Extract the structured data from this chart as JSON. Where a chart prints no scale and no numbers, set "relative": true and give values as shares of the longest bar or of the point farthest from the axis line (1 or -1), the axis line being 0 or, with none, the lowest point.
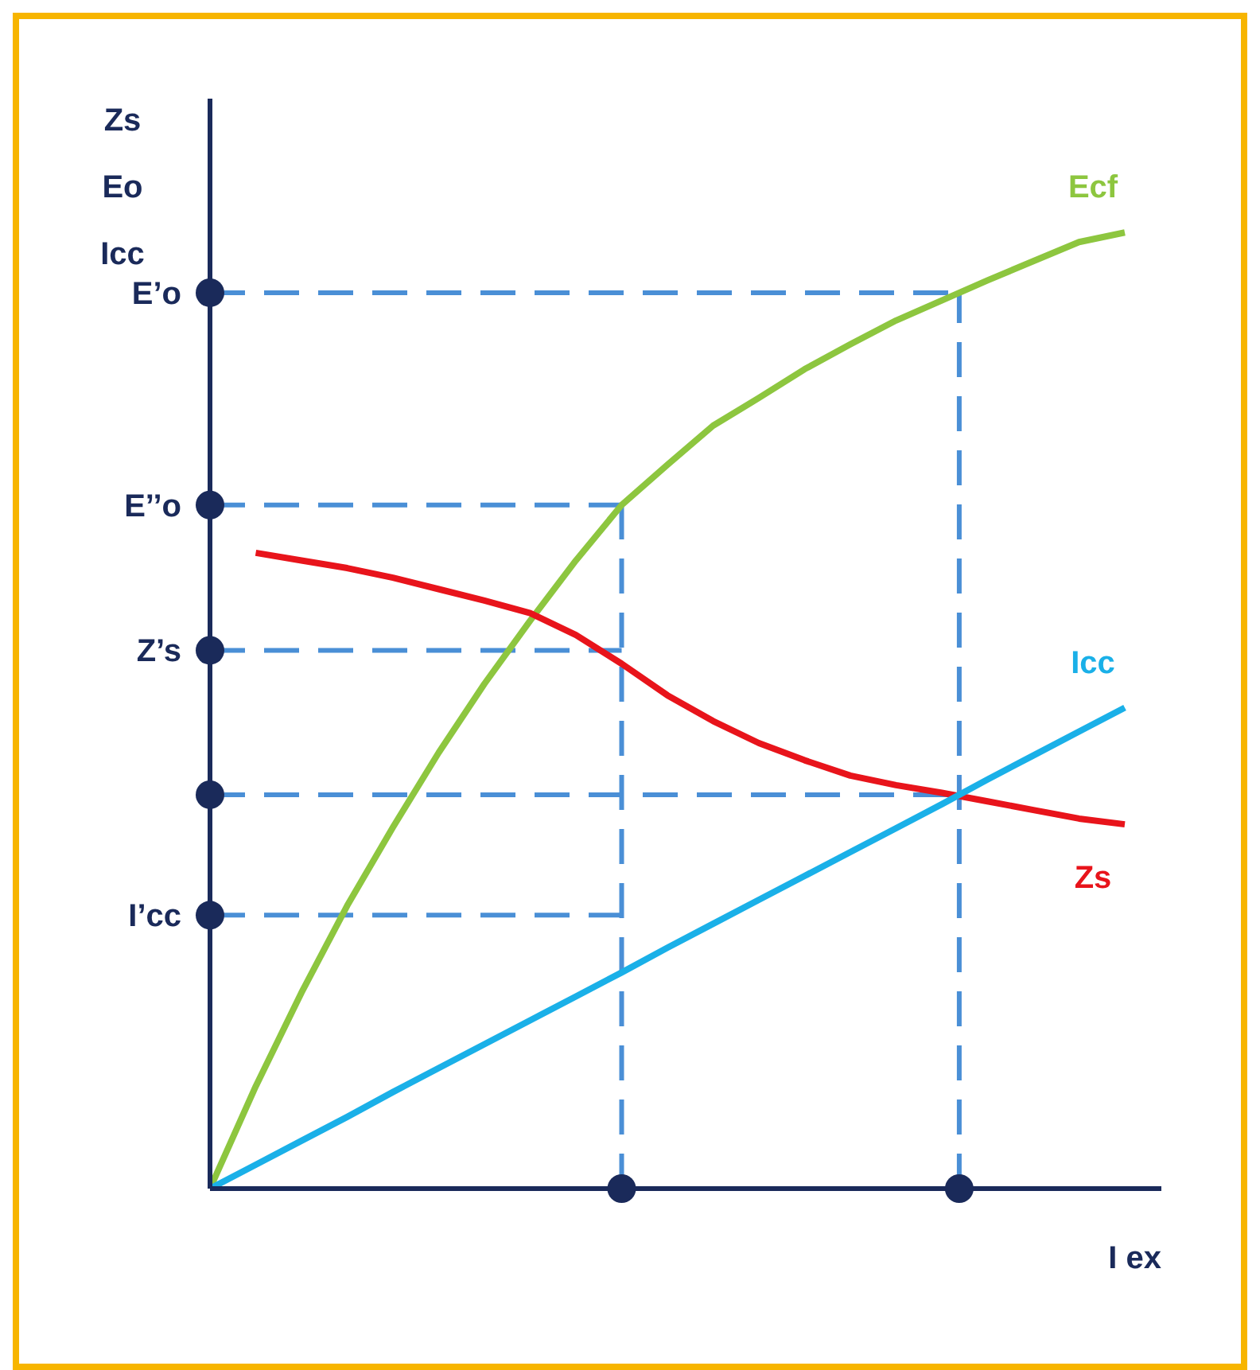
{
  "chart_data": {
    "type": "line",
    "relative": true,
    "ylabel": "Zs\nEo\nIcc",
    "xlabel": "I ex",
    "legend": false,
    "grid": false,
    "marker": "none",
    "line_style": "solid",
    "categories": [
      null,
      null,
      null,
      null,
      null,
      null,
      null,
      null,
      null,
      null,
      null,
      null,
      null,
      null,
      null,
      null,
      null,
      null,
      null,
      null,
      null
    ],
    "series": [
      {
        "name": "Ecf",
        "color": "#8dc63f",
        "values": [
          0,
          0.107,
          0.205,
          0.296,
          0.378,
          0.456,
          0.528,
          0.594,
          0.657,
          0.715,
          0.757,
          0.798,
          0.827,
          0.857,
          0.883,
          0.908,
          0.929,
          0.95,
          0.97,
          0.99,
          1.0
        ]
      },
      {
        "name": "Zs",
        "color": "#e8141b",
        "values": [
          null,
          0.665,
          0.657,
          0.649,
          0.639,
          0.627,
          0.615,
          0.602,
          0.579,
          0.549,
          0.516,
          0.489,
          0.466,
          0.448,
          0.432,
          0.422,
          0.414,
          0.405,
          0.396,
          0.387,
          0.381
        ]
      },
      {
        "name": "Icc",
        "color": "#1ab0e8",
        "values": [
          0,
          0.025,
          0.05,
          0.075,
          0.101,
          0.126,
          0.151,
          0.176,
          0.201,
          0.226,
          0.252,
          0.277,
          0.302,
          0.327,
          0.352,
          0.377,
          0.402,
          0.428,
          0.453,
          0.478,
          0.503
        ]
      }
    ],
    "ref_lines": [
      {
        "axis": "y",
        "value": 0.937,
        "label": "E’o",
        "color": "#4a8fd6",
        "line_style": "dashed"
      },
      {
        "axis": "y",
        "value": 0.715,
        "label": "E’’o",
        "color": "#4a8fd6",
        "line_style": "dashed"
      },
      {
        "axis": "y",
        "value": 0.563,
        "label": "Z’s",
        "color": "#4a8fd6",
        "line_style": "dashed"
      },
      {
        "axis": "y",
        "value": 0.412,
        "label": null,
        "color": "#4a8fd6",
        "line_style": "dashed"
      },
      {
        "axis": "y",
        "value": 0.286,
        "label": "I’cc",
        "color": "#4a8fd6",
        "line_style": "dashed"
      }
    ]
  }
}
